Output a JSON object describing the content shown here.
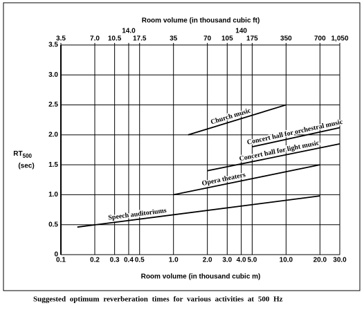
{
  "chart_data": {
    "type": "line",
    "caption": "Suggested optimum reverberation times for various activities at 500 Hz",
    "x_label": "Room volume (in thousand cubic m)",
    "x2_label": "Room volume (in thousand cubic ft)",
    "y_label": "RT",
    "y_label_subscript": "500",
    "y_unit": "(sec)",
    "x_log": true,
    "grid": true,
    "xlim": [
      0.1,
      30
    ],
    "xticks": [
      0.1,
      0.2,
      0.3,
      0.4,
      0.5,
      {
        "value": 1,
        "label": "1.0"
      },
      {
        "value": 2,
        "label": "2.0"
      },
      {
        "value": 3,
        "label": "3.0"
      },
      {
        "value": 4,
        "label": "4.0"
      },
      {
        "value": 5,
        "label": "5.0"
      },
      {
        "value": 10,
        "label": "10.0"
      },
      {
        "value": 20,
        "label": "20.0"
      },
      {
        "value": 30,
        "label": "30.0"
      }
    ],
    "x2lim": [
      3.5,
      1050
    ],
    "x2ticks": [
      3.5,
      {
        "value": 7,
        "label": "7.0"
      },
      10.5,
      {
        "value": 14,
        "label": "14.0"
      },
      17.5,
      35,
      70,
      105,
      140,
      175,
      350,
      700,
      {
        "value": 1050,
        "label": "1,050"
      }
    ],
    "ylim": [
      0,
      3.5
    ],
    "yticks": [
      0,
      0.5,
      {
        "value": 1,
        "label": "1.0"
      },
      1.5,
      {
        "value": 2,
        "label": "2.0"
      },
      2.5,
      {
        "value": 3,
        "label": "3.0"
      },
      3.5
    ],
    "series": [
      {
        "name": "Speech auditoriums",
        "color": "#000000",
        "x": [
          0.14,
          20
        ],
        "values": [
          0.46,
          0.98
        ]
      },
      {
        "name": "Opera theaters",
        "color": "#000000",
        "x": [
          1,
          20
        ],
        "values": [
          1.0,
          1.5
        ]
      },
      {
        "name": "Concert hall for light music",
        "color": "#000000",
        "x": [
          2,
          30
        ],
        "values": [
          1.4,
          1.85
        ]
      },
      {
        "name": "Concert hall for orchestral music",
        "color": "#000000",
        "x": [
          5,
          30
        ],
        "values": [
          1.8,
          2.12
        ]
      },
      {
        "name": "Church music",
        "color": "#000000",
        "x": [
          1.35,
          10
        ],
        "values": [
          2.0,
          2.5
        ]
      }
    ]
  }
}
